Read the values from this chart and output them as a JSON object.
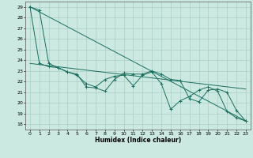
{
  "title": "",
  "xlabel": "Humidex (Indice chaleur)",
  "ylabel": "",
  "xlim": [
    -0.5,
    23.5
  ],
  "ylim": [
    17.5,
    29.5
  ],
  "yticks": [
    18,
    19,
    20,
    21,
    22,
    23,
    24,
    25,
    26,
    27,
    28,
    29
  ],
  "xticks": [
    0,
    1,
    2,
    3,
    4,
    5,
    6,
    7,
    8,
    9,
    10,
    11,
    12,
    13,
    14,
    15,
    16,
    17,
    18,
    19,
    20,
    21,
    22,
    23
  ],
  "bg_color": "#cce9e1",
  "grid_color": "#aacfc8",
  "line_color": "#1a6e5e",
  "line1_x": [
    0,
    1,
    2,
    3,
    4,
    5,
    6,
    7,
    8,
    9,
    10,
    11,
    12,
    13,
    14,
    15,
    16,
    17,
    18,
    19,
    20,
    21,
    22,
    23
  ],
  "line1_y": [
    29.0,
    28.7,
    23.7,
    23.3,
    22.9,
    22.7,
    21.5,
    21.4,
    21.1,
    22.2,
    22.8,
    22.7,
    22.7,
    23.0,
    22.7,
    22.2,
    22.1,
    20.4,
    20.1,
    21.2,
    21.3,
    21.0,
    19.3,
    18.3
  ],
  "line2_x": [
    0,
    1,
    2,
    3,
    4,
    5,
    6,
    7,
    8,
    9,
    10,
    11,
    12,
    13,
    14,
    15,
    16,
    17,
    18,
    19,
    20,
    21,
    22,
    23
  ],
  "line2_y": [
    29.0,
    23.7,
    23.4,
    23.3,
    22.9,
    22.6,
    21.8,
    21.5,
    22.2,
    22.5,
    22.6,
    21.6,
    22.6,
    22.9,
    21.8,
    19.4,
    20.2,
    20.6,
    21.2,
    21.5,
    21.1,
    19.2,
    18.6,
    18.3
  ],
  "line3_x": [
    0,
    23
  ],
  "line3_y": [
    29.0,
    18.3
  ],
  "line4_x": [
    0,
    23
  ],
  "line4_y": [
    23.7,
    21.3
  ]
}
